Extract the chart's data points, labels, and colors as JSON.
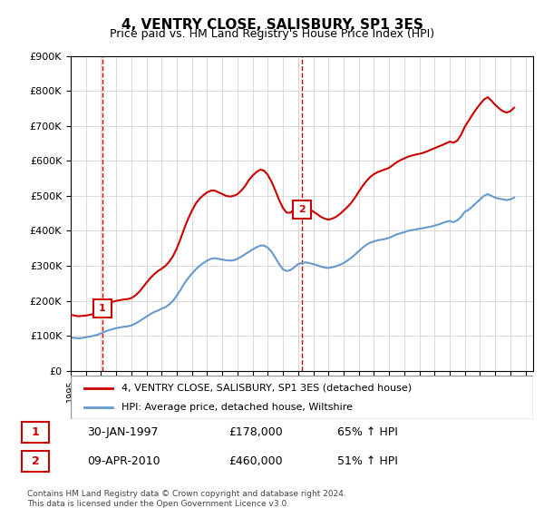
{
  "title": "4, VENTRY CLOSE, SALISBURY, SP1 3ES",
  "subtitle": "Price paid vs. HM Land Registry's House Price Index (HPI)",
  "legend_line1": "4, VENTRY CLOSE, SALISBURY, SP1 3ES (detached house)",
  "legend_line2": "HPI: Average price, detached house, Wiltshire",
  "sale1_date": 1997.08,
  "sale1_price": 178000,
  "sale1_label": "1",
  "sale1_text": "30-JAN-1997    £178,000    65% ↑ HPI",
  "sale2_date": 2010.27,
  "sale2_price": 460000,
  "sale2_label": "2",
  "sale2_text": "09-APR-2010    £460,000    51% ↑ HPI",
  "footnote": "Contains HM Land Registry data © Crown copyright and database right 2024.\nThis data is licensed under the Open Government Licence v3.0.",
  "hpi_color": "#6699cc",
  "house_color": "#cc0000",
  "marker_color": "#cc0000",
  "ylim": [
    0,
    900000
  ],
  "xlim_left": 1995.0,
  "xlim_right": 2025.5,
  "hpi_data": {
    "years": [
      1995.0,
      1995.25,
      1995.5,
      1995.75,
      1996.0,
      1996.25,
      1996.5,
      1996.75,
      1997.0,
      1997.25,
      1997.5,
      1997.75,
      1998.0,
      1998.25,
      1998.5,
      1998.75,
      1999.0,
      1999.25,
      1999.5,
      1999.75,
      2000.0,
      2000.25,
      2000.5,
      2000.75,
      2001.0,
      2001.25,
      2001.5,
      2001.75,
      2002.0,
      2002.25,
      2002.5,
      2002.75,
      2003.0,
      2003.25,
      2003.5,
      2003.75,
      2004.0,
      2004.25,
      2004.5,
      2004.75,
      2005.0,
      2005.25,
      2005.5,
      2005.75,
      2006.0,
      2006.25,
      2006.5,
      2006.75,
      2007.0,
      2007.25,
      2007.5,
      2007.75,
      2008.0,
      2008.25,
      2008.5,
      2008.75,
      2009.0,
      2009.25,
      2009.5,
      2009.75,
      2010.0,
      2010.25,
      2010.5,
      2010.75,
      2011.0,
      2011.25,
      2011.5,
      2011.75,
      2012.0,
      2012.25,
      2012.5,
      2012.75,
      2013.0,
      2013.25,
      2013.5,
      2013.75,
      2014.0,
      2014.25,
      2014.5,
      2014.75,
      2015.0,
      2015.25,
      2015.5,
      2015.75,
      2016.0,
      2016.25,
      2016.5,
      2016.75,
      2017.0,
      2017.25,
      2017.5,
      2017.75,
      2018.0,
      2018.25,
      2018.5,
      2018.75,
      2019.0,
      2019.25,
      2019.5,
      2019.75,
      2020.0,
      2020.25,
      2020.5,
      2020.75,
      2021.0,
      2021.25,
      2021.5,
      2021.75,
      2022.0,
      2022.25,
      2022.5,
      2022.75,
      2023.0,
      2023.25,
      2023.5,
      2023.75,
      2024.0,
      2024.25
    ],
    "values": [
      95000,
      94000,
      93000,
      94000,
      96000,
      98000,
      100000,
      103000,
      107000,
      112000,
      116000,
      119000,
      122000,
      124000,
      126000,
      127000,
      130000,
      135000,
      141000,
      148000,
      155000,
      162000,
      168000,
      172000,
      178000,
      182000,
      190000,
      200000,
      215000,
      232000,
      250000,
      265000,
      278000,
      290000,
      300000,
      308000,
      315000,
      320000,
      322000,
      320000,
      318000,
      316000,
      315000,
      316000,
      320000,
      326000,
      333000,
      340000,
      347000,
      353000,
      358000,
      358000,
      352000,
      340000,
      323000,
      305000,
      290000,
      285000,
      288000,
      296000,
      305000,
      308000,
      310000,
      308000,
      305000,
      302000,
      298000,
      295000,
      294000,
      296000,
      299000,
      303000,
      308000,
      315000,
      323000,
      332000,
      342000,
      352000,
      360000,
      366000,
      370000,
      373000,
      375000,
      377000,
      380000,
      385000,
      390000,
      393000,
      396000,
      400000,
      402000,
      404000,
      406000,
      408000,
      410000,
      412000,
      415000,
      418000,
      422000,
      426000,
      428000,
      425000,
      430000,
      440000,
      455000,
      460000,
      470000,
      480000,
      490000,
      500000,
      505000,
      500000,
      495000,
      492000,
      490000,
      488000,
      490000,
      495000
    ]
  },
  "house_data": {
    "years": [
      1995.0,
      1995.25,
      1995.5,
      1995.75,
      1996.0,
      1996.25,
      1996.5,
      1996.75,
      1997.0,
      1997.08,
      1997.25,
      1997.5,
      1997.75,
      1998.0,
      1998.25,
      1998.5,
      1998.75,
      1999.0,
      1999.25,
      1999.5,
      1999.75,
      2000.0,
      2000.25,
      2000.5,
      2000.75,
      2001.0,
      2001.25,
      2001.5,
      2001.75,
      2002.0,
      2002.25,
      2002.5,
      2002.75,
      2003.0,
      2003.25,
      2003.5,
      2003.75,
      2004.0,
      2004.25,
      2004.5,
      2004.75,
      2005.0,
      2005.25,
      2005.5,
      2005.75,
      2006.0,
      2006.25,
      2006.5,
      2006.75,
      2007.0,
      2007.25,
      2007.5,
      2007.75,
      2008.0,
      2008.25,
      2008.5,
      2008.75,
      2009.0,
      2009.25,
      2009.5,
      2009.75,
      2010.0,
      2010.27,
      2010.5,
      2010.75,
      2011.0,
      2011.25,
      2011.5,
      2011.75,
      2012.0,
      2012.25,
      2012.5,
      2012.75,
      2013.0,
      2013.25,
      2013.5,
      2013.75,
      2014.0,
      2014.25,
      2014.5,
      2014.75,
      2015.0,
      2015.25,
      2015.5,
      2015.75,
      2016.0,
      2016.25,
      2016.5,
      2016.75,
      2017.0,
      2017.25,
      2017.5,
      2017.75,
      2018.0,
      2018.25,
      2018.5,
      2018.75,
      2019.0,
      2019.25,
      2019.5,
      2019.75,
      2020.0,
      2020.25,
      2020.5,
      2020.75,
      2021.0,
      2021.25,
      2021.5,
      2021.75,
      2022.0,
      2022.25,
      2022.5,
      2022.75,
      2023.0,
      2023.25,
      2023.5,
      2023.75,
      2024.0,
      2024.25
    ],
    "values": [
      160000,
      158000,
      156000,
      157000,
      158000,
      160000,
      162000,
      165000,
      170000,
      178000,
      185000,
      192000,
      197000,
      200000,
      202000,
      204000,
      205000,
      208000,
      215000,
      225000,
      238000,
      252000,
      265000,
      276000,
      285000,
      292000,
      300000,
      312000,
      328000,
      350000,
      378000,
      408000,
      435000,
      458000,
      478000,
      492000,
      502000,
      510000,
      515000,
      515000,
      510000,
      505000,
      500000,
      498000,
      500000,
      505000,
      515000,
      528000,
      545000,
      558000,
      568000,
      575000,
      572000,
      560000,
      540000,
      515000,
      488000,
      465000,
      452000,
      452000,
      462000,
      472000,
      460000,
      468000,
      462000,
      455000,
      448000,
      440000,
      435000,
      432000,
      435000,
      440000,
      448000,
      458000,
      468000,
      480000,
      495000,
      512000,
      528000,
      542000,
      554000,
      562000,
      568000,
      572000,
      576000,
      580000,
      588000,
      596000,
      602000,
      607000,
      612000,
      615000,
      618000,
      620000,
      623000,
      627000,
      632000,
      636000,
      641000,
      645000,
      650000,
      655000,
      652000,
      658000,
      675000,
      698000,
      715000,
      732000,
      748000,
      762000,
      775000,
      782000,
      772000,
      760000,
      750000,
      742000,
      738000,
      742000,
      752000
    ]
  }
}
